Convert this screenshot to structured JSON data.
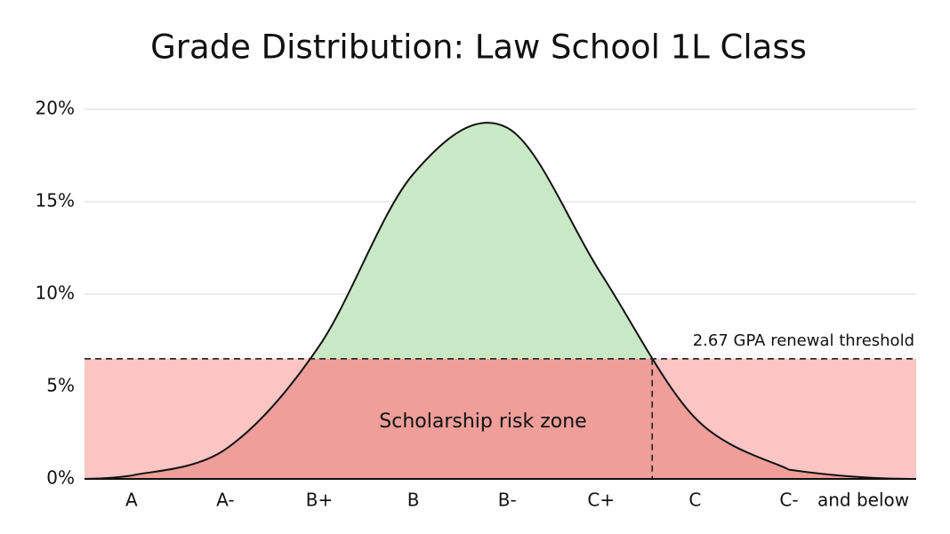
{
  "chart_data": {
    "type": "area",
    "title": "Grade Distribution: Law School 1L Class",
    "categories": [
      "A",
      "A-",
      "B+",
      "B",
      "B-",
      "C+",
      "C",
      "C-",
      "and below"
    ],
    "series": [
      {
        "values": [
          0.18,
          1.6,
          7.2,
          16.5,
          19.0,
          11.1,
          3.3,
          0.5,
          null
        ],
        "color": "#c9e8c5",
        "line_color": "#111111"
      }
    ],
    "ylim": [
      0,
      20
    ],
    "yticks": [
      {
        "value": 0,
        "label": "0%"
      },
      {
        "value": 5,
        "label": "5%"
      },
      {
        "value": 10,
        "label": "10%"
      },
      {
        "value": 15,
        "label": "15%"
      },
      {
        "value": 20,
        "label": "20%"
      }
    ],
    "grid": true,
    "threshold": {
      "value": 6.5,
      "label": "2.67 GPA renewal threshold",
      "color": "#fbc5c3",
      "overlap_color": "#ef9e9a"
    },
    "zone_label": "Scholarship risk zone"
  }
}
